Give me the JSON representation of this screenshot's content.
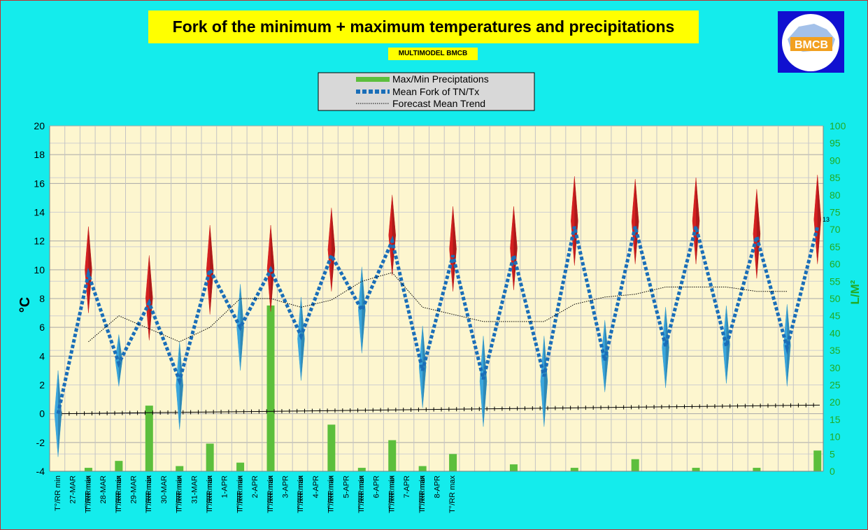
{
  "title": "Fork of the minimum + maximum temperatures and precipitations",
  "subtitle": "MULTIMODEL BMCB",
  "logo_text": "BMCB",
  "colors": {
    "background": "#14ecec",
    "plot_bg": "#fdf6cf",
    "title_bg": "#ffff00",
    "precip": "#5cbf3c",
    "mean_fork": "#1a6eb8",
    "tmax_marker": "#d42020",
    "tmin_marker": "#3aa6dc",
    "right_axis": "#22aa22"
  },
  "chart_data": {
    "type": "line",
    "title": "Fork of the minimum + maximum temperatures and precipitations",
    "ylabel": "°C",
    "ylabel_right": "L/M²",
    "ylim": [
      -4,
      20
    ],
    "ytick_step": 2,
    "ylim_right": [
      0,
      100
    ],
    "ytick_step_right": 5,
    "grid": true,
    "legend": {
      "placement": "top-center",
      "entries": [
        "Max/Min Preciptations",
        "Mean Fork of TN/Tx",
        "Forecast Mean Trend"
      ]
    },
    "x_labels": [
      "T°/RR min",
      "27-MAR",
      "T°/RR max",
      "T°/RR min",
      "28-MAR",
      "T°/RR max",
      "T°/RR min",
      "29-MAR",
      "T°/RR max",
      "T°/RR min",
      "30-MAR",
      "T°/RR max",
      "T°/RR min",
      "31-MAR",
      "T°/RR max",
      "T°/RR min",
      "1-APR",
      "T°/RR max",
      "T°/RR min",
      "2-APR",
      "T°/RR max",
      "T°/RR min",
      "3-APR",
      "T°/RR max",
      "T°/RR min",
      "4-APR",
      "T°/RR max",
      "T°/RR min",
      "5-APR",
      "T°/RR max",
      "T°/RR min",
      "6-APR",
      "T°/RR max",
      "T°/RR min",
      "7-APR",
      "T°/RR max",
      "T°/RR min",
      "8-APR",
      "T°/RR max"
    ],
    "series": [
      {
        "name": "Mean Fork of TN/Tx",
        "values": [
          0,
          9.7,
          3.5,
          7.7,
          2.3,
          10,
          6,
          10,
          5.4,
          11,
          7.2,
          12,
          3,
          11,
          2.4,
          11,
          2.6,
          13,
          3.7,
          13,
          4.7,
          13,
          4.7,
          12.3,
          4.6,
          13
        ]
      },
      {
        "name": "Forecast Mean Trend",
        "values": [
          5,
          6.8,
          5.9,
          5,
          6,
          8,
          8,
          7.4,
          7.9,
          9.2,
          9.8,
          7.4,
          6.9,
          6.4,
          6.4,
          6.4,
          7.6,
          8.1,
          8.3,
          8.8,
          8.8,
          8.8,
          8.5,
          8.5
        ]
      },
      {
        "name": "Max/Min Preciptations",
        "values": [
          0,
          1,
          3,
          19,
          1.5,
          8,
          2.5,
          48,
          0,
          13.5,
          1,
          9,
          1.5,
          5,
          0,
          2,
          0,
          1,
          0,
          3.5,
          0,
          1,
          0,
          1,
          0,
          6
        ]
      }
    ],
    "ranges_tmax": [
      [
        7,
        13
      ],
      [
        5.1,
        11
      ],
      [
        6.9,
        13.1
      ],
      [
        7.1,
        13.1
      ],
      [
        8.5,
        14.3
      ],
      [
        9.6,
        15.2
      ],
      [
        8.5,
        14.4
      ],
      [
        8.6,
        14.4
      ],
      [
        10.3,
        16.5
      ],
      [
        10.4,
        16.3
      ],
      [
        10.4,
        16.4
      ],
      [
        9.4,
        15.6
      ],
      [
        10.4,
        16.6
      ]
    ],
    "ranges_tmin": [
      [
        -3,
        3
      ],
      [
        1.9,
        5.5
      ],
      [
        -1.1,
        5
      ],
      [
        3,
        9
      ],
      [
        2.3,
        8.1
      ],
      [
        4.2,
        10.2
      ],
      [
        0.4,
        6.1
      ],
      [
        -0.9,
        5.4
      ],
      [
        -0.9,
        5.4
      ],
      [
        1.5,
        6.5
      ],
      [
        1.8,
        7.4
      ],
      [
        2.1,
        7.5
      ],
      [
        1.9,
        7.6
      ]
    ],
    "point_label": "13",
    "lower_trend": [
      0,
      0.6
    ]
  }
}
